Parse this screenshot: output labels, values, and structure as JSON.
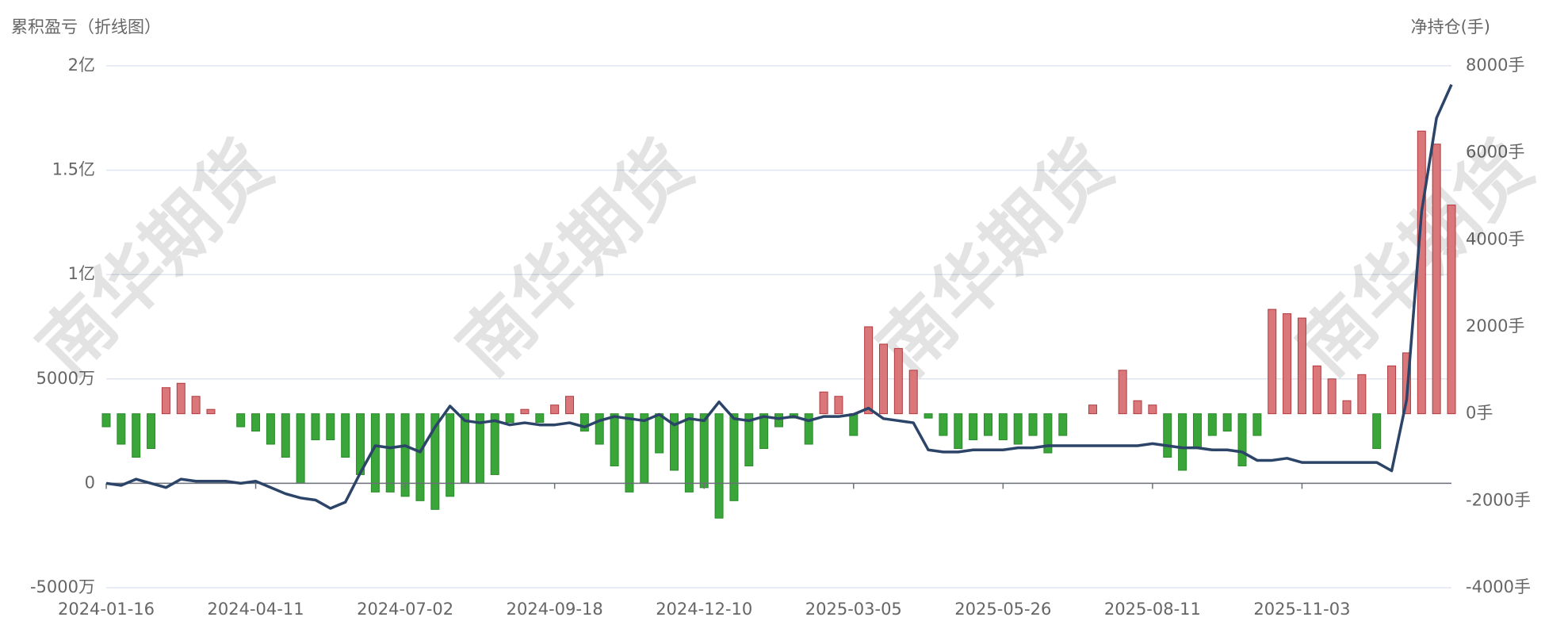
{
  "chart_data": {
    "type": "bar-line",
    "left_axis_title": "累积盈亏（折线图）",
    "right_axis_title": "净持仓(手)",
    "watermark": "南华期货",
    "categories": [
      "2024-01-16",
      null,
      null,
      null,
      null,
      null,
      null,
      null,
      null,
      null,
      "2024-04-11",
      null,
      null,
      null,
      null,
      null,
      null,
      null,
      null,
      null,
      "2024-07-02",
      null,
      null,
      null,
      null,
      null,
      null,
      null,
      null,
      null,
      "2024-09-18",
      null,
      null,
      null,
      null,
      null,
      null,
      null,
      null,
      null,
      "2024-12-10",
      null,
      null,
      null,
      null,
      null,
      null,
      null,
      null,
      null,
      "2025-03-05",
      null,
      null,
      null,
      null,
      null,
      null,
      null,
      null,
      null,
      "2025-05-26",
      null,
      null,
      null,
      null,
      null,
      null,
      null,
      null,
      null,
      "2025-08-11",
      null,
      null,
      null,
      null,
      null,
      null,
      null,
      null,
      null,
      "2025-11-03",
      null,
      null,
      null,
      null,
      null,
      null,
      null,
      null,
      null,
      null
    ],
    "series": [
      {
        "type": "line",
        "color": "#2b4468",
        "axis": "y",
        "values": [
          0,
          -1000000,
          2000000,
          0,
          -2000000,
          2000000,
          1000000,
          1000000,
          1000000,
          0,
          1000000,
          -2000000,
          -5000000,
          -7000000,
          -8000000,
          -12000000,
          -9000000,
          5000000,
          18000000,
          17000000,
          18000000,
          15000000,
          27000000,
          37000000,
          30000000,
          29000000,
          30000000,
          28000000,
          29000000,
          28000000,
          28000000,
          29000000,
          27000000,
          30000000,
          32000000,
          31000000,
          30000000,
          33000000,
          28000000,
          31000000,
          30000000,
          39000000,
          31000000,
          30000000,
          32000000,
          31000000,
          32000000,
          30000000,
          32000000,
          32000000,
          33000000,
          36000000,
          31000000,
          30000000,
          29000000,
          16000000,
          15000000,
          15000000,
          16000000,
          16000000,
          16000000,
          17000000,
          17000000,
          18000000,
          18000000,
          18000000,
          18000000,
          18000000,
          18000000,
          18000000,
          19000000,
          18000000,
          17000000,
          17000000,
          16000000,
          16000000,
          15000000,
          11000000,
          11000000,
          12000000,
          10000000,
          10000000,
          10000000,
          10000000,
          10000000,
          10000000,
          6000000,
          40000000,
          130000000,
          175000000,
          191000000
        ]
      },
      {
        "type": "bar",
        "axis": "y2",
        "positive_color": "#d9777a",
        "negative_color": "#3aa63a",
        "values": [
          -300,
          -700,
          -1000,
          -800,
          600,
          700,
          400,
          100,
          0,
          -300,
          -400,
          -700,
          -1000,
          -1600,
          -600,
          -600,
          -1000,
          -1400,
          -1800,
          -1800,
          -1900,
          -2000,
          -2200,
          -1900,
          -1600,
          -1600,
          -1400,
          -200,
          100,
          -200,
          200,
          400,
          -400,
          -700,
          -1200,
          -1800,
          -1600,
          -900,
          -1300,
          -1800,
          -1700,
          -2400,
          -2000,
          -1200,
          -800,
          -300,
          -100,
          -700,
          500,
          400,
          -500,
          2000,
          1600,
          1500,
          1000,
          -100,
          -500,
          -800,
          -600,
          -500,
          -600,
          -700,
          -500,
          -900,
          -500,
          0,
          200,
          0,
          1000,
          300,
          200,
          -1000,
          -1300,
          -800,
          -500,
          -400,
          -1200,
          -500,
          2400,
          2300,
          2200,
          1100,
          800,
          300,
          900,
          -800,
          1100,
          1400,
          6500,
          6200,
          4800
        ]
      }
    ],
    "ylim": [
      -50000000,
      200000000
    ],
    "yticks": [
      {
        "value": -50000000,
        "label": "-5000万"
      },
      0,
      {
        "value": 50000000,
        "label": "5000万"
      },
      {
        "value": 100000000,
        "label": "1亿"
      },
      {
        "value": 150000000,
        "label": "1.5亿"
      },
      {
        "value": 200000000,
        "label": "2亿"
      }
    ],
    "y2lim": [
      -4000,
      8000
    ],
    "y2ticks": [
      {
        "value": -4000,
        "label": "-4000手"
      },
      {
        "value": -2000,
        "label": "-2000手"
      },
      {
        "value": 0,
        "label": "0手"
      },
      {
        "value": 2000,
        "label": "2000手"
      },
      {
        "value": 4000,
        "label": "4000手"
      },
      {
        "value": 6000,
        "label": "6000手"
      },
      {
        "value": 8000,
        "label": "8000手"
      }
    ],
    "grid": true
  }
}
